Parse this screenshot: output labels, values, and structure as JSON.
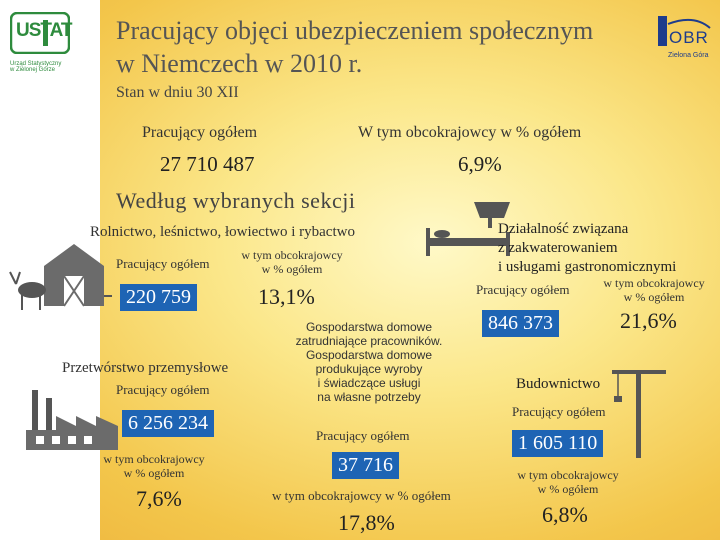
{
  "logos": {
    "ustat_text": "USTAT",
    "ustat_caption_line1": "Urząd Statystyczny",
    "ustat_caption_line2": "w Zielonej Górze",
    "obr_text": "OBR",
    "obr_caption": "Zielona Góra"
  },
  "header": {
    "title_line1": "Pracujący objęci ubezpieczeniem społecznym",
    "title_line2": "w Niemczech w 2010 r.",
    "subtitle": "Stan w dniu 30 XII"
  },
  "totals": {
    "workers_label": "Pracujący ogółem",
    "workers_value": "27 710 487",
    "foreigners_label": "W tym obcokrajowcy w % ogółem",
    "foreigners_value": "6,9%"
  },
  "sections_heading": "Według wybranych sekcji",
  "sectors": {
    "agriculture": {
      "title": "Rolnictwo, leśnictwo, łowiectwo i rybactwo",
      "workers_label": "Pracujący ogółem",
      "foreign_label_line1": "w tym obcokrajowcy",
      "foreign_label_line2": "w % ogółem",
      "workers_value": "220 759",
      "foreign_value": "13,1%"
    },
    "industry": {
      "title": "Przetwórstwo przemysłowe",
      "workers_label": "Pracujący ogółem",
      "workers_value": "6 256 234",
      "foreign_label_line1": "w tym obcokrajowcy",
      "foreign_label_line2": "w % ogółem",
      "foreign_value": "7,6%"
    },
    "households": {
      "title_line1": "Gospodarstwa domowe",
      "title_line2": "zatrudniające pracowników.",
      "title_line3": "Gospodarstwa domowe",
      "title_line4": "produkujące wyroby",
      "title_line5": "i świadczące usługi",
      "title_line6": "na własne potrzeby",
      "workers_label": "Pracujący ogółem",
      "workers_value": "37 716",
      "foreign_label": "w tym obcokrajowcy w % ogółem",
      "foreign_value": "17,8%"
    },
    "accommodation": {
      "title_line1": "Działalność związana",
      "title_line2": "z zakwaterowaniem",
      "title_line3": "i usługami gastronomicznymi",
      "workers_label": "Pracujący ogółem",
      "foreign_label_line1": "w tym obcokrajowcy",
      "foreign_label_line2": "w % ogółem",
      "workers_value": "846 373",
      "foreign_value": "21,6%"
    },
    "construction": {
      "title": "Budownictwo",
      "workers_label": "Pracujący ogółem",
      "workers_value": "1 605 110",
      "foreign_label_line1": "w tym obcokrajowcy",
      "foreign_label_line2": "w % ogółem",
      "foreign_value": "6,8%"
    }
  },
  "colors": {
    "accent_box": "#1e64b4",
    "background_center": "#fff9c8",
    "background_edge": "#eeb43c"
  }
}
